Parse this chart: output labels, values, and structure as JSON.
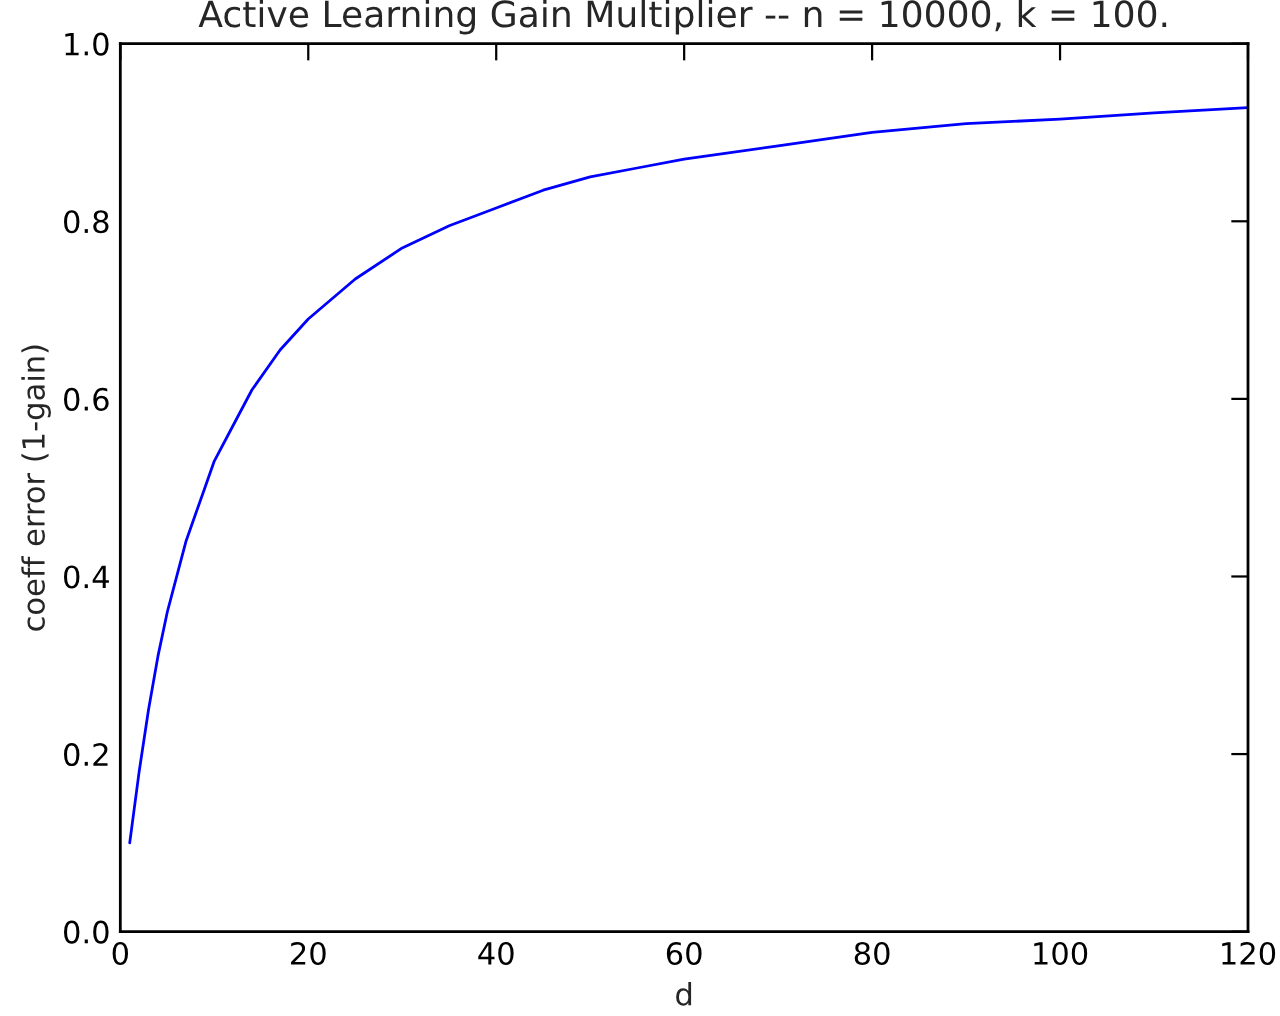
{
  "chart_data": {
    "type": "line",
    "title": "Active Learning Gain Multiplier -- n = 10000, k = 100.",
    "xlabel": "d",
    "ylabel": "coeff error (1-gain)",
    "series": [
      {
        "color": "#0000ff",
        "x": [
          1,
          2,
          3,
          4,
          5,
          6,
          7,
          8,
          9,
          10,
          12,
          14,
          17,
          20,
          25,
          30,
          35,
          40,
          45,
          50,
          55,
          60,
          70,
          80,
          90,
          100,
          110,
          120
        ],
        "values": [
          0.1,
          0.18,
          0.25,
          0.31,
          0.36,
          0.4,
          0.44,
          0.47,
          0.5,
          0.53,
          0.57,
          0.61,
          0.655,
          0.69,
          0.735,
          0.77,
          0.795,
          0.815,
          0.835,
          0.85,
          0.86,
          0.87,
          0.885,
          0.9,
          0.91,
          0.915,
          0.922,
          0.928
        ]
      }
    ],
    "xlim": [
      0,
      120
    ],
    "xticks": [
      0,
      20,
      40,
      60,
      80,
      100,
      120
    ],
    "ylim": [
      0.0,
      1.0
    ],
    "yticks": [
      {
        "value": 0,
        "label": "0.0"
      },
      0.2,
      0.4,
      0.6,
      0.8,
      {
        "value": 1,
        "label": "1.0"
      }
    ],
    "grid": false,
    "legend": false,
    "marker": "none",
    "line_style": "solid"
  }
}
